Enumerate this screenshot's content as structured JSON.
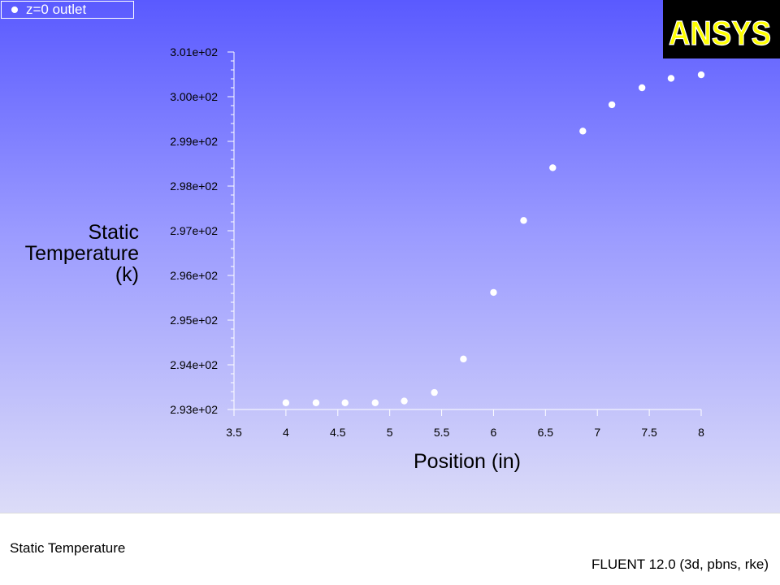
{
  "legend": {
    "label": "z=0  outlet"
  },
  "logo": {
    "text": "ANSYS"
  },
  "footer": {
    "left_title": "Static Temperature",
    "right_info": "FLUENT 12.0 (3d, pbns, rke)"
  },
  "colors": {
    "plot_top": "#5a5aff",
    "plot_bottom": "#dcdcf8",
    "marker": "#ffffff",
    "axis": "#ffffff",
    "logo_bg": "#000000",
    "logo_text": "#ffff00"
  },
  "chart_data": {
    "type": "scatter",
    "ylabel_lines": [
      "Static",
      "Temperature",
      "(k)"
    ],
    "xlabel": "Position (in)",
    "xlim": [
      3.5,
      8
    ],
    "ylim": [
      293,
      301
    ],
    "xticks": [
      "3.5",
      "4",
      "4.5",
      "5",
      "5.5",
      "6",
      "6.5",
      "7",
      "7.5",
      "8"
    ],
    "xtick_values": [
      3.5,
      4,
      4.5,
      5,
      5.5,
      6,
      6.5,
      7,
      7.5,
      8
    ],
    "yticks": [
      "2.93e+02",
      "2.94e+02",
      "2.95e+02",
      "2.96e+02",
      "2.97e+02",
      "2.98e+02",
      "2.99e+02",
      "3.00e+02",
      "3.01e+02"
    ],
    "ytick_values": [
      293,
      294,
      295,
      296,
      297,
      298,
      299,
      300,
      301
    ],
    "series": [
      {
        "name": "z=0  outlet",
        "x": [
          4.0,
          4.29,
          4.57,
          4.86,
          5.14,
          5.43,
          5.71,
          6.0,
          6.29,
          6.57,
          6.86,
          7.14,
          7.43,
          7.71,
          8.0
        ],
        "y": [
          293.15,
          293.15,
          293.15,
          293.15,
          293.19,
          293.38,
          294.13,
          295.62,
          297.23,
          298.41,
          299.23,
          299.82,
          300.2,
          300.41,
          300.49
        ]
      }
    ]
  }
}
